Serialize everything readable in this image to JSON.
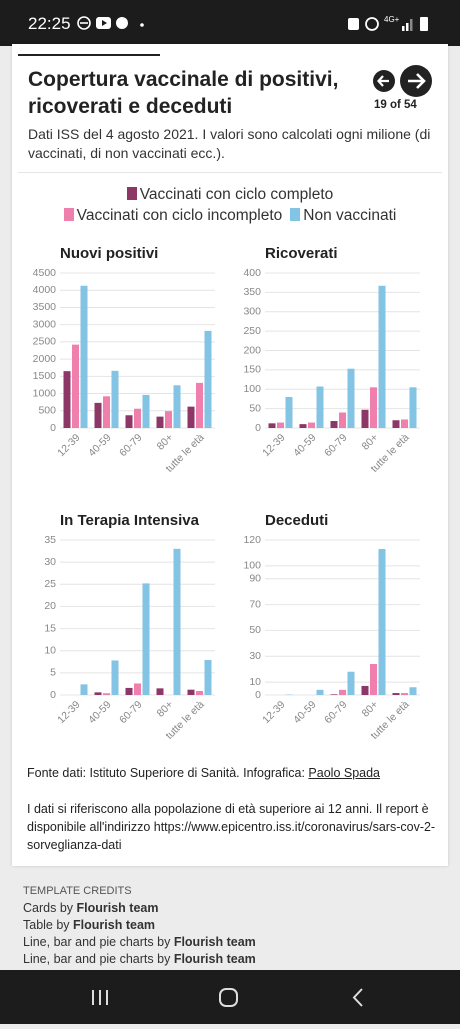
{
  "status_bar": {
    "time": "22:25",
    "network": "4G+"
  },
  "header": {
    "title": "Copertura vaccinale di positivi, ricoverati e deceduti",
    "pager": "19 of 54",
    "subtitle": "Dati ISS del 4 agosto 2021. I valori sono calcolati ogni milione (di vaccinati, di non vaccinati ecc.)."
  },
  "legend": [
    {
      "name": "Vaccinati con ciclo completo",
      "color": "#8c3766"
    },
    {
      "name": "Vaccinati con ciclo incompleto",
      "color": "#ef7fad"
    },
    {
      "name": "Non vaccinati",
      "color": "#83c3e3"
    }
  ],
  "chart_data": [
    {
      "type": "bar",
      "title": "Nuovi positivi",
      "categories": [
        "12-39",
        "40-59",
        "60-79",
        "80+",
        "tutte le età"
      ],
      "ylim": [
        0,
        4500
      ],
      "yticks": [
        0,
        500,
        1000,
        1500,
        2000,
        2500,
        3000,
        3500,
        4000,
        4500
      ],
      "grid": true,
      "series": [
        {
          "values": [
            1650,
            730,
            370,
            330,
            620
          ]
        },
        {
          "values": [
            2420,
            920,
            560,
            490,
            1310
          ]
        },
        {
          "values": [
            4130,
            1660,
            960,
            1240,
            2820
          ]
        }
      ]
    },
    {
      "type": "bar",
      "title": "Ricoverati",
      "categories": [
        "12-39",
        "40-59",
        "60-79",
        "80+",
        "tutte le età"
      ],
      "ylim": [
        0,
        400
      ],
      "yticks": [
        0,
        50,
        100,
        150,
        200,
        250,
        300,
        350,
        400
      ],
      "grid": true,
      "series": [
        {
          "values": [
            12,
            10,
            18,
            47,
            20
          ]
        },
        {
          "values": [
            14,
            14,
            40,
            105,
            22
          ]
        },
        {
          "values": [
            80,
            107,
            153,
            367,
            105
          ]
        }
      ]
    },
    {
      "type": "bar",
      "title": "In Terapia Intensiva",
      "categories": [
        "12-39",
        "40-59",
        "60-79",
        "80+",
        "tutte le età"
      ],
      "ylim": [
        0,
        35
      ],
      "yticks": [
        0,
        5,
        10,
        15,
        20,
        25,
        30,
        35
      ],
      "grid": true,
      "series": [
        {
          "values": [
            0,
            0.6,
            1.6,
            1.5,
            1.2
          ]
        },
        {
          "values": [
            0,
            0.4,
            2.6,
            0,
            0.9
          ]
        },
        {
          "values": [
            2.4,
            7.8,
            25.2,
            33,
            7.9
          ]
        }
      ]
    },
    {
      "type": "bar",
      "title": "Deceduti",
      "categories": [
        "12-39",
        "40-59",
        "60-79",
        "80+",
        "tutte le età"
      ],
      "ylim": [
        0,
        120
      ],
      "yticks": [
        0,
        10,
        30,
        50,
        70,
        90,
        100,
        120
      ],
      "grid": true,
      "series": [
        {
          "values": [
            0,
            0,
            0.5,
            7,
            1.5
          ]
        },
        {
          "values": [
            0,
            0,
            4,
            24,
            1.5
          ]
        },
        {
          "values": [
            0.3,
            4,
            18,
            113,
            6
          ]
        }
      ]
    }
  ],
  "footer": {
    "source": "Fonte dati: Istituto Superiore di Sanità. Infografica:",
    "author": "Paolo Spada",
    "note": "I dati si riferiscono alla popolazione di età superiore ai 12 anni. Il report è disponibile all'indirizzo https://www.epicentro.iss.it/coronavirus/sars-cov-2-sorveglianza-dati"
  },
  "credits": {
    "heading": "TEMPLATE CREDITS",
    "lines": [
      {
        "text": "Cards by",
        "author": "Flourish team"
      },
      {
        "text": "Table by",
        "author": "Flourish team"
      },
      {
        "text": "Line, bar and pie charts by",
        "author": "Flourish team"
      },
      {
        "text": "Line, bar and pie charts by",
        "author": "Flourish team"
      }
    ]
  }
}
